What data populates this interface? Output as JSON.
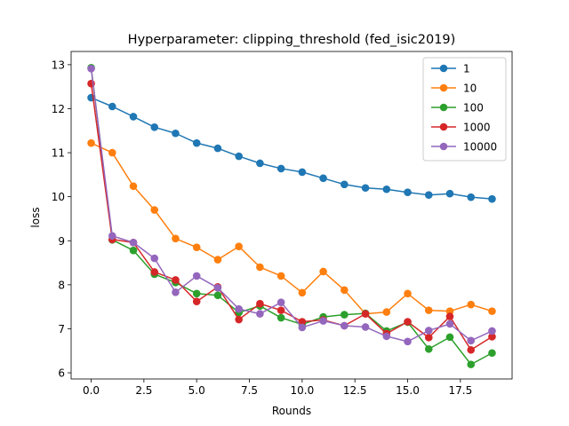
{
  "chart_data": {
    "type": "line",
    "title": "Hyperparameter: clipping_threshold (fed_isic2019)",
    "xlabel": "Rounds",
    "ylabel": "loss",
    "xlim": [
      -0.95,
      19.95
    ],
    "ylim": [
      5.86,
      13.3
    ],
    "xticks": [
      0.0,
      2.5,
      5.0,
      7.5,
      10.0,
      12.5,
      15.0,
      17.5
    ],
    "xtick_labels": [
      "0.0",
      "2.5",
      "5.0",
      "7.5",
      "10.0",
      "12.5",
      "15.0",
      "17.5"
    ],
    "yticks": [
      6,
      7,
      8,
      9,
      10,
      11,
      12,
      13
    ],
    "ytick_labels": [
      "6",
      "7",
      "8",
      "9",
      "10",
      "11",
      "12",
      "13"
    ],
    "grid": false,
    "legend_position": "top-right",
    "x": [
      0,
      1,
      2,
      3,
      4,
      5,
      6,
      7,
      8,
      9,
      10,
      11,
      12,
      13,
      14,
      15,
      16,
      17,
      18,
      19
    ],
    "series": [
      {
        "name": "1",
        "color": "#1f77b4",
        "values": [
          12.25,
          12.05,
          11.82,
          11.58,
          11.44,
          11.22,
          11.1,
          10.92,
          10.76,
          10.64,
          10.56,
          10.42,
          10.28,
          10.2,
          10.17,
          10.1,
          10.04,
          10.07,
          9.99,
          9.95
        ]
      },
      {
        "name": "10",
        "color": "#ff7f0e",
        "values": [
          11.22,
          11.0,
          10.24,
          9.7,
          9.05,
          8.85,
          8.57,
          8.87,
          8.4,
          8.2,
          7.82,
          8.3,
          7.88,
          7.34,
          7.38,
          7.8,
          7.42,
          7.4,
          7.55,
          7.4
        ]
      },
      {
        "name": "100",
        "color": "#2ca02c",
        "values": [
          12.93,
          9.02,
          8.78,
          8.24,
          8.05,
          7.8,
          7.76,
          7.37,
          7.52,
          7.25,
          7.1,
          7.27,
          7.32,
          7.35,
          6.95,
          7.15,
          6.54,
          6.81,
          6.19,
          6.45
        ]
      },
      {
        "name": "1000",
        "color": "#d62728",
        "values": [
          12.57,
          9.03,
          8.96,
          8.29,
          8.11,
          7.62,
          7.95,
          7.21,
          7.57,
          7.42,
          7.16,
          7.2,
          7.07,
          7.34,
          6.89,
          7.16,
          6.8,
          7.28,
          6.52,
          6.82
        ]
      },
      {
        "name": "10000",
        "color": "#9467bd",
        "values": [
          12.91,
          9.11,
          8.96,
          8.6,
          7.83,
          8.2,
          7.93,
          7.45,
          7.34,
          7.6,
          7.03,
          7.18,
          7.07,
          7.04,
          6.83,
          6.71,
          6.96,
          7.11,
          6.73,
          6.95
        ]
      }
    ]
  }
}
